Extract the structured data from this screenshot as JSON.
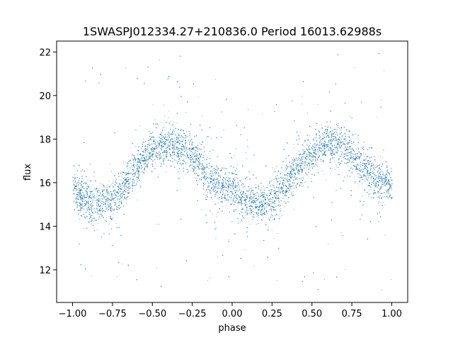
{
  "chart_data": {
    "type": "scatter",
    "title": "1SWASPJ012334.27+210836.0 Period 16013.62988s",
    "xlabel": "phase",
    "ylabel": "flux",
    "xlim": [
      -1.1,
      1.1
    ],
    "ylim": [
      10.5,
      22.5
    ],
    "xticks": [
      -1.0,
      -0.75,
      -0.5,
      -0.25,
      0.0,
      0.25,
      0.5,
      0.75,
      1.0
    ],
    "xtick_labels": [
      "−1.00",
      "−0.75",
      "−0.50",
      "−0.25",
      "0.00",
      "0.25",
      "0.50",
      "0.75",
      "1.00"
    ],
    "yticks": [
      12,
      14,
      16,
      18,
      20,
      22
    ],
    "ytick_labels": [
      "12",
      "14",
      "16",
      "18",
      "20",
      "22"
    ],
    "grid": false,
    "legend": "none",
    "marker_color": "#1f77b4",
    "series": [
      {
        "points_x": [
          -1.0,
          -0.95,
          -0.9,
          -0.85,
          -0.8,
          -0.75,
          -0.7,
          -0.65,
          -0.6,
          -0.55,
          -0.5,
          -0.45,
          -0.4,
          -0.35,
          -0.3,
          -0.25,
          -0.2,
          -0.15,
          -0.1,
          -0.05,
          0.0,
          0.05,
          0.1,
          0.15,
          0.2,
          0.25,
          0.3,
          0.35,
          0.4,
          0.45,
          0.5,
          0.55,
          0.6,
          0.65,
          0.7,
          0.75,
          0.8,
          0.85,
          0.9,
          0.95,
          1.0
        ],
        "points_y": [
          15.9,
          15.4,
          15.1,
          15.0,
          15.0,
          15.3,
          15.7,
          16.2,
          16.7,
          17.2,
          17.5,
          17.7,
          17.8,
          17.8,
          17.6,
          17.2,
          16.8,
          16.3,
          15.9,
          15.7,
          15.7,
          15.4,
          15.1,
          15.0,
          15.0,
          15.3,
          15.7,
          16.2,
          16.7,
          17.0,
          17.3,
          17.6,
          17.8,
          17.8,
          17.6,
          17.3,
          16.9,
          16.5,
          16.2,
          16.0,
          15.9
        ]
      }
    ]
  }
}
